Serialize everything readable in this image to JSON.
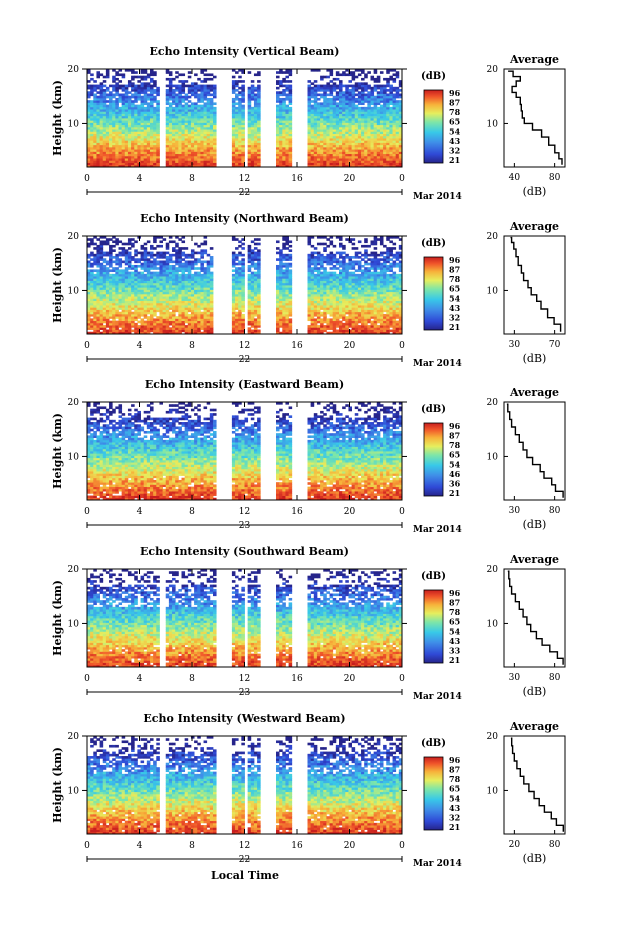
{
  "chart_data": [
    {
      "type": "heatmap",
      "title": "Echo Intensity (Vertical Beam)",
      "ylabel": "Height (km)",
      "xticks": [
        "0",
        "4",
        "8",
        "12",
        "16",
        "20",
        "0"
      ],
      "yticks": [
        "20",
        "10"
      ],
      "ylim": [
        2,
        20
      ],
      "xlim": [
        0,
        24
      ],
      "date_day": "22",
      "date_label": "Mar 2014",
      "colorbar": {
        "unit": "(dB)",
        "ticks": [
          "96",
          "87",
          "78",
          "65",
          "54",
          "43",
          "32",
          "21"
        ],
        "range": [
          21,
          96
        ]
      },
      "gaps": [
        [
          5.6,
          6.0
        ],
        [
          9.8,
          11.1
        ],
        [
          11.9,
          12.3
        ],
        [
          13.3,
          14.4
        ],
        [
          15.7,
          16.8
        ]
      ],
      "average": {
        "title": "Average",
        "xlabel": "(dB)",
        "xticks": [
          "40",
          "80"
        ],
        "yticks": [
          "20",
          "10"
        ],
        "xlim": [
          26,
          86
        ],
        "points": [
          [
            83,
            2.4
          ],
          [
            80,
            3.5
          ],
          [
            76,
            4.6
          ],
          [
            70,
            6.0
          ],
          [
            63,
            7.5
          ],
          [
            54,
            8.8
          ],
          [
            46,
            10.0
          ],
          [
            44,
            11.0
          ],
          [
            43,
            12.3
          ],
          [
            42,
            13.5
          ],
          [
            38,
            14.8
          ],
          [
            34,
            15.7
          ],
          [
            38,
            16.8
          ],
          [
            42,
            17.8
          ],
          [
            35,
            18.6
          ],
          [
            30,
            19.6
          ]
        ]
      }
    },
    {
      "type": "heatmap",
      "title": "Echo Intensity (Northward Beam)",
      "ylabel": "Height (km)",
      "xticks": [
        "0",
        "4",
        "8",
        "12",
        "16",
        "20",
        "0"
      ],
      "yticks": [
        "20",
        "10"
      ],
      "ylim": [
        2,
        20
      ],
      "xlim": [
        0,
        24
      ],
      "date_day": "22",
      "date_label": "Mar 2014",
      "colorbar": {
        "unit": "(dB)",
        "ticks": [
          "96",
          "87",
          "78",
          "65",
          "54",
          "43",
          "32",
          "21"
        ],
        "range": [
          21,
          96
        ]
      },
      "gaps": [
        [
          9.7,
          11.1
        ],
        [
          11.9,
          12.3
        ],
        [
          13.3,
          14.4
        ],
        [
          15.7,
          16.8
        ]
      ],
      "average": {
        "title": "Average",
        "xlabel": "(dB)",
        "xticks": [
          "30",
          "70"
        ],
        "yticks": [
          "20",
          "10"
        ],
        "xlim": [
          20,
          76
        ],
        "points": [
          [
            72,
            2.4
          ],
          [
            66,
            3.8
          ],
          [
            60,
            5.0
          ],
          [
            54,
            6.6
          ],
          [
            50,
            8.0
          ],
          [
            45,
            9.2
          ],
          [
            42,
            10.5
          ],
          [
            38,
            11.8
          ],
          [
            36,
            13.2
          ],
          [
            33,
            14.6
          ],
          [
            31,
            16.2
          ],
          [
            29,
            17.6
          ],
          [
            27,
            18.8
          ],
          [
            26,
            19.7
          ]
        ]
      }
    },
    {
      "type": "heatmap",
      "title": "Echo Intensity (Eastward Beam)",
      "ylabel": "Height (km)",
      "xticks": [
        "0",
        "4",
        "8",
        "12",
        "16",
        "20",
        "0"
      ],
      "yticks": [
        "20",
        "10"
      ],
      "ylim": [
        2,
        20
      ],
      "xlim": [
        0,
        24
      ],
      "date_day": "23",
      "date_label": "Mar 2014",
      "colorbar": {
        "unit": "(dB)",
        "ticks": [
          "96",
          "87",
          "78",
          "65",
          "54",
          "46",
          "36",
          "21"
        ],
        "range": [
          21,
          96
        ]
      },
      "gaps": [
        [
          9.8,
          11.1
        ],
        [
          13.3,
          14.4
        ],
        [
          15.7,
          16.8
        ]
      ],
      "average": {
        "title": "Average",
        "xlabel": "(dB)",
        "xticks": [
          "30",
          "80"
        ],
        "yticks": [
          "20",
          "10"
        ],
        "xlim": [
          22,
          86
        ],
        "points": [
          [
            84,
            2.4
          ],
          [
            76,
            3.6
          ],
          [
            72,
            4.8
          ],
          [
            64,
            6.0
          ],
          [
            60,
            7.2
          ],
          [
            52,
            8.5
          ],
          [
            46,
            9.8
          ],
          [
            42,
            11.2
          ],
          [
            38,
            12.6
          ],
          [
            34,
            14.0
          ],
          [
            30,
            15.4
          ],
          [
            28,
            16.8
          ],
          [
            26,
            18.2
          ],
          [
            25,
            19.6
          ]
        ]
      }
    },
    {
      "type": "heatmap",
      "title": "Echo Intensity (Southward Beam)",
      "ylabel": "Height (km)",
      "xticks": [
        "0",
        "4",
        "8",
        "12",
        "16",
        "20",
        "0"
      ],
      "yticks": [
        "20",
        "10"
      ],
      "ylim": [
        2,
        20
      ],
      "xlim": [
        0,
        24
      ],
      "date_day": "23",
      "date_label": "Mar 2014",
      "colorbar": {
        "unit": "(dB)",
        "ticks": [
          "96",
          "87",
          "78",
          "65",
          "54",
          "43",
          "33",
          "21"
        ],
        "range": [
          21,
          96
        ]
      },
      "gaps": [
        [
          5.6,
          6.0
        ],
        [
          9.8,
          11.1
        ],
        [
          11.9,
          12.3
        ],
        [
          13.3,
          14.4
        ],
        [
          15.7,
          16.8
        ]
      ],
      "average": {
        "title": "Average",
        "xlabel": "(dB)",
        "xticks": [
          "30",
          "80"
        ],
        "yticks": [
          "20",
          "10"
        ],
        "xlim": [
          22,
          86
        ],
        "points": [
          [
            84,
            2.4
          ],
          [
            78,
            3.6
          ],
          [
            70,
            4.8
          ],
          [
            62,
            6.0
          ],
          [
            56,
            7.2
          ],
          [
            50,
            8.5
          ],
          [
            46,
            9.8
          ],
          [
            42,
            11.2
          ],
          [
            38,
            12.6
          ],
          [
            34,
            14.0
          ],
          [
            30,
            15.4
          ],
          [
            28,
            16.8
          ],
          [
            27,
            18.2
          ],
          [
            26,
            19.6
          ]
        ]
      }
    },
    {
      "type": "heatmap",
      "title": "Echo Intensity (Westward Beam)",
      "ylabel": "Height (km)",
      "xticks": [
        "0",
        "4",
        "8",
        "12",
        "16",
        "20",
        "0"
      ],
      "yticks": [
        "20",
        "10"
      ],
      "ylim": [
        2,
        20
      ],
      "xlim": [
        0,
        24
      ],
      "date_day": "22",
      "date_label": "Mar 2014",
      "colorbar": {
        "unit": "(dB)",
        "ticks": [
          "96",
          "87",
          "78",
          "65",
          "54",
          "43",
          "32",
          "21"
        ],
        "range": [
          21,
          96
        ]
      },
      "gaps": [
        [
          5.6,
          6.0
        ],
        [
          9.8,
          11.1
        ],
        [
          11.9,
          12.3
        ],
        [
          13.3,
          14.4
        ],
        [
          15.7,
          16.8
        ]
      ],
      "average": {
        "title": "Average",
        "xlabel": "(dB)",
        "xticks": [
          "20",
          "80"
        ],
        "yticks": [
          "20",
          "10"
        ],
        "xlim": [
          15,
          86
        ],
        "points": [
          [
            84,
            2.4
          ],
          [
            76,
            3.6
          ],
          [
            70,
            4.8
          ],
          [
            62,
            6.0
          ],
          [
            56,
            7.2
          ],
          [
            50,
            8.5
          ],
          [
            44,
            9.8
          ],
          [
            38,
            11.2
          ],
          [
            34,
            12.6
          ],
          [
            30,
            14.0
          ],
          [
            27,
            15.4
          ],
          [
            25,
            16.8
          ],
          [
            24,
            18.2
          ],
          [
            23,
            19.6
          ]
        ]
      }
    }
  ],
  "xlabel": "Local Time",
  "colors": {
    "scale": [
      "#26248a",
      "#2f49d6",
      "#3f8ee8",
      "#38c9e8",
      "#7ee6a8",
      "#e6ee5e",
      "#f7b23a",
      "#f0552a",
      "#c81e1e"
    ],
    "line": "#000000"
  }
}
